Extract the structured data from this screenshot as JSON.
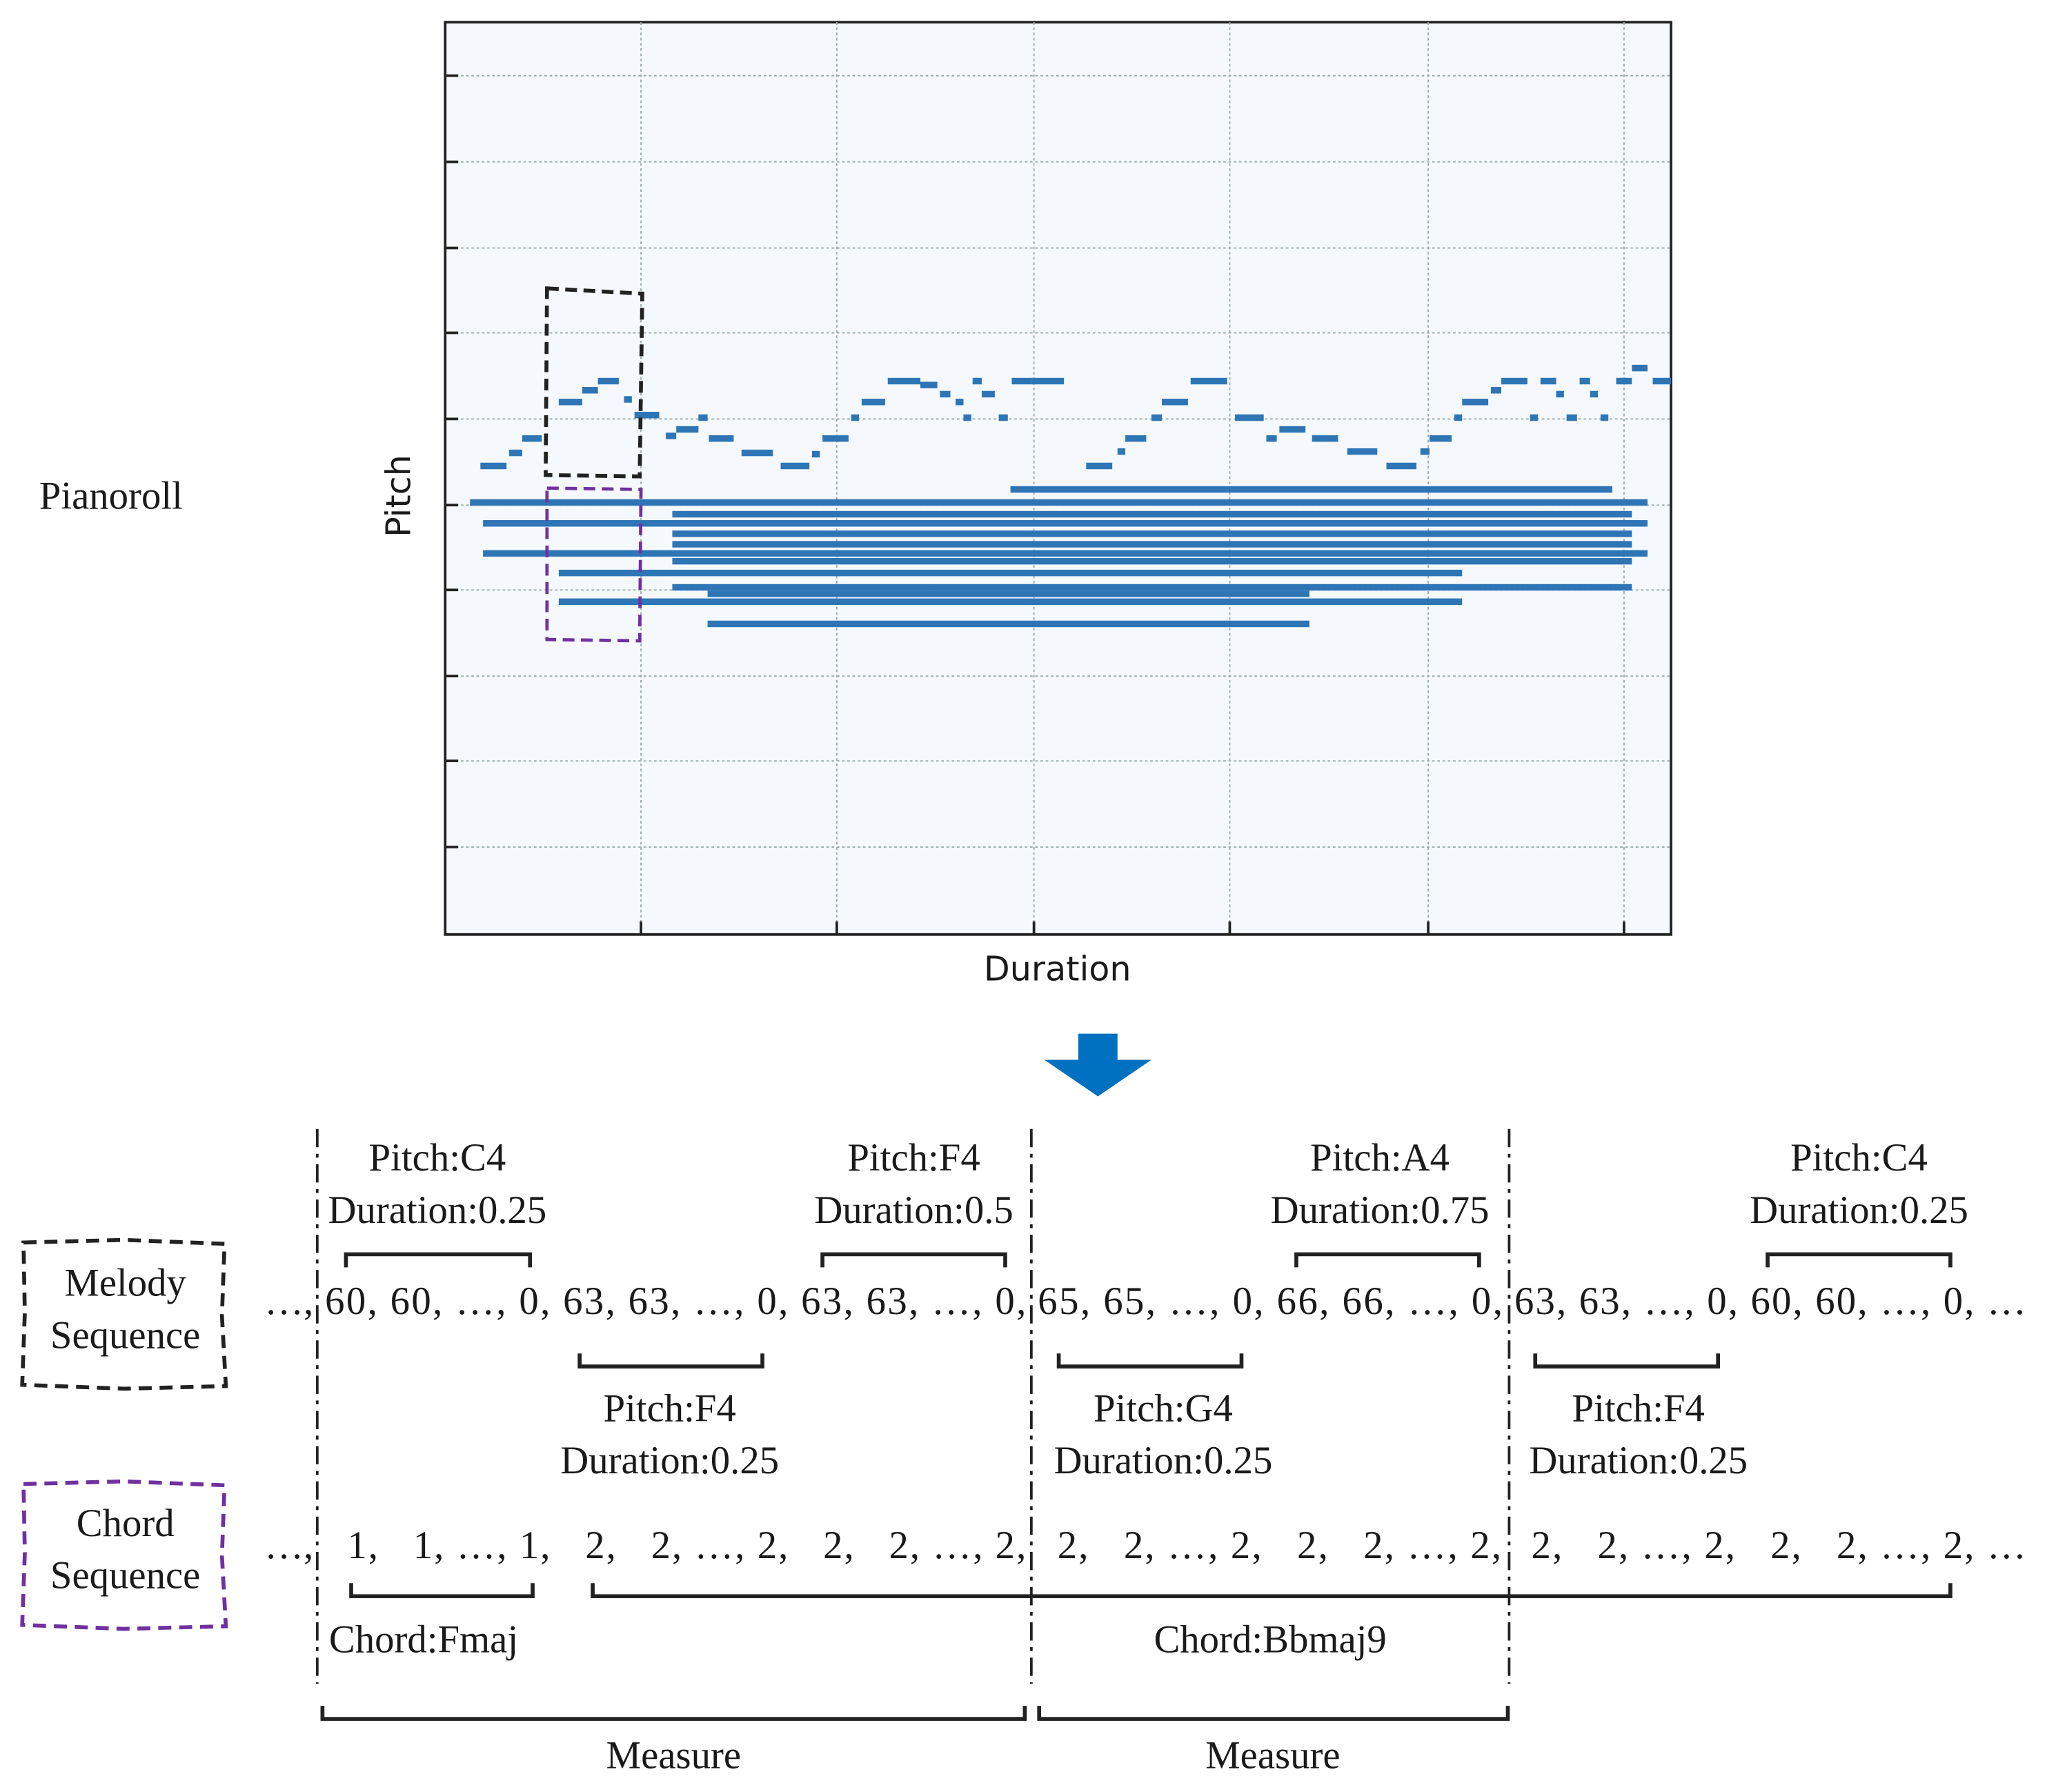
{
  "pianoroll": {
    "label": "Pianoroll",
    "y_axis": "Pitch",
    "x_axis": "Duration"
  },
  "melody": {
    "label": [
      "Melody",
      "Sequence"
    ],
    "segments": [
      "…,",
      "60, 60, …, 0, 63, 63, …, 0, 63, 63, …, 0,",
      "65, 65, …, 0, 66, 66, …, 0,",
      "63, 63, …, 0, 60, 60, …, 0, …"
    ],
    "notes_above": [
      {
        "pitch": "Pitch:C4",
        "duration": "Duration:0.25"
      },
      {
        "pitch": "Pitch:F4",
        "duration": "Duration:0.5"
      },
      {
        "pitch": "Pitch:A4",
        "duration": "Duration:0.75"
      },
      {
        "pitch": "Pitch:C4",
        "duration": "Duration:0.25"
      }
    ],
    "notes_below": [
      {
        "pitch": "Pitch:F4",
        "duration": "Duration:0.25"
      },
      {
        "pitch": "Pitch:G4",
        "duration": "Duration:0.25"
      },
      {
        "pitch": "Pitch:F4",
        "duration": "Duration:0.25"
      }
    ]
  },
  "chord": {
    "label": [
      "Chord",
      "Sequence"
    ],
    "segments": [
      "…,",
      "1,   1, …, 1,   2,   2, …, 2,   2,   2, …, 2,",
      "2,   2, …, 2,   2,   2, …, 2,",
      "2,   2, …, 2,   2,   2, …, 2, …"
    ],
    "chords": [
      "Chord:Fmaj",
      "Chord:Bbmaj9"
    ]
  },
  "measures": [
    "Measure",
    "Measure"
  ]
}
